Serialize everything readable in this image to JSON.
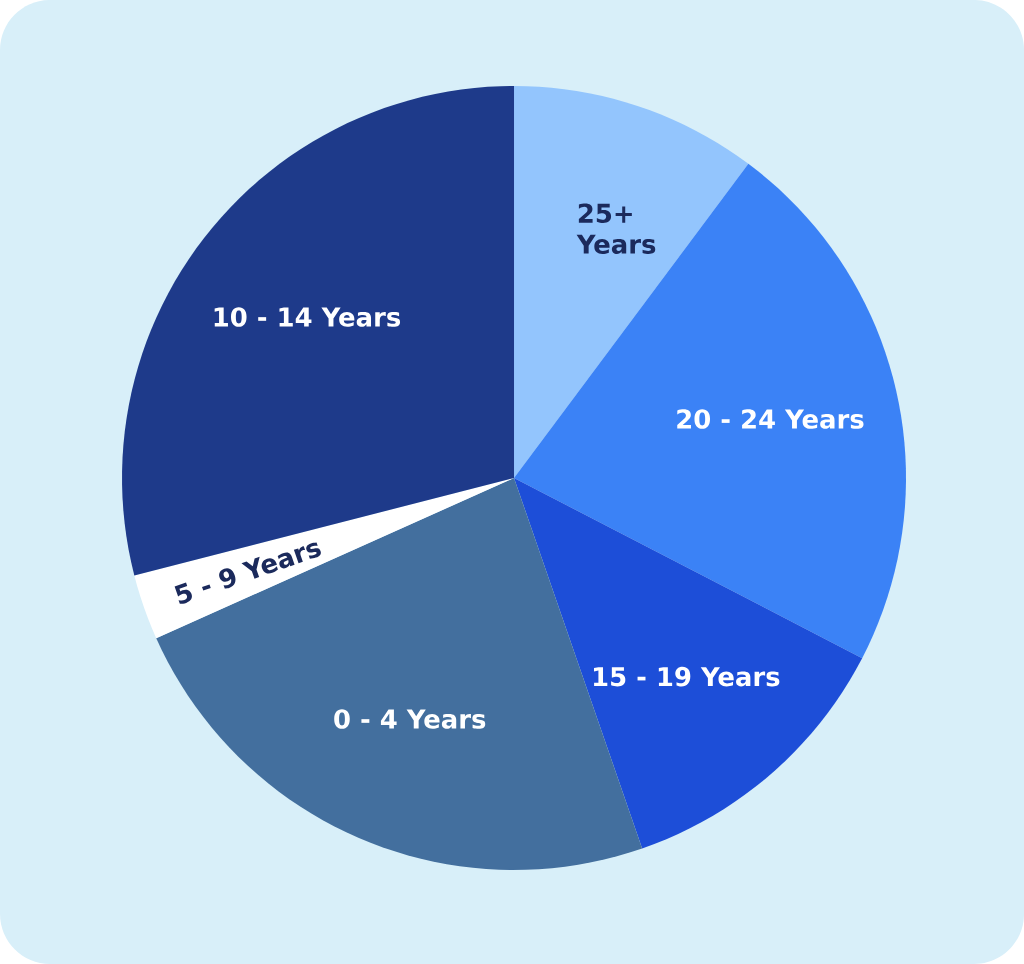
{
  "chart_data": {
    "type": "pie",
    "categories": [
      "25+ Years",
      "20 - 24 Years",
      "15 - 19 Years",
      "0 - 4  Years",
      "5 - 9 Years",
      "10 - 14 Years"
    ],
    "values": [
      10.2,
      22.4,
      12.1,
      23.6,
      2.7,
      29.0
    ],
    "colors": [
      "#93c5fd",
      "#3b82f6",
      "#1d4ed8",
      "#436f9e",
      "#ffffff",
      "#1e3a8a"
    ]
  }
}
